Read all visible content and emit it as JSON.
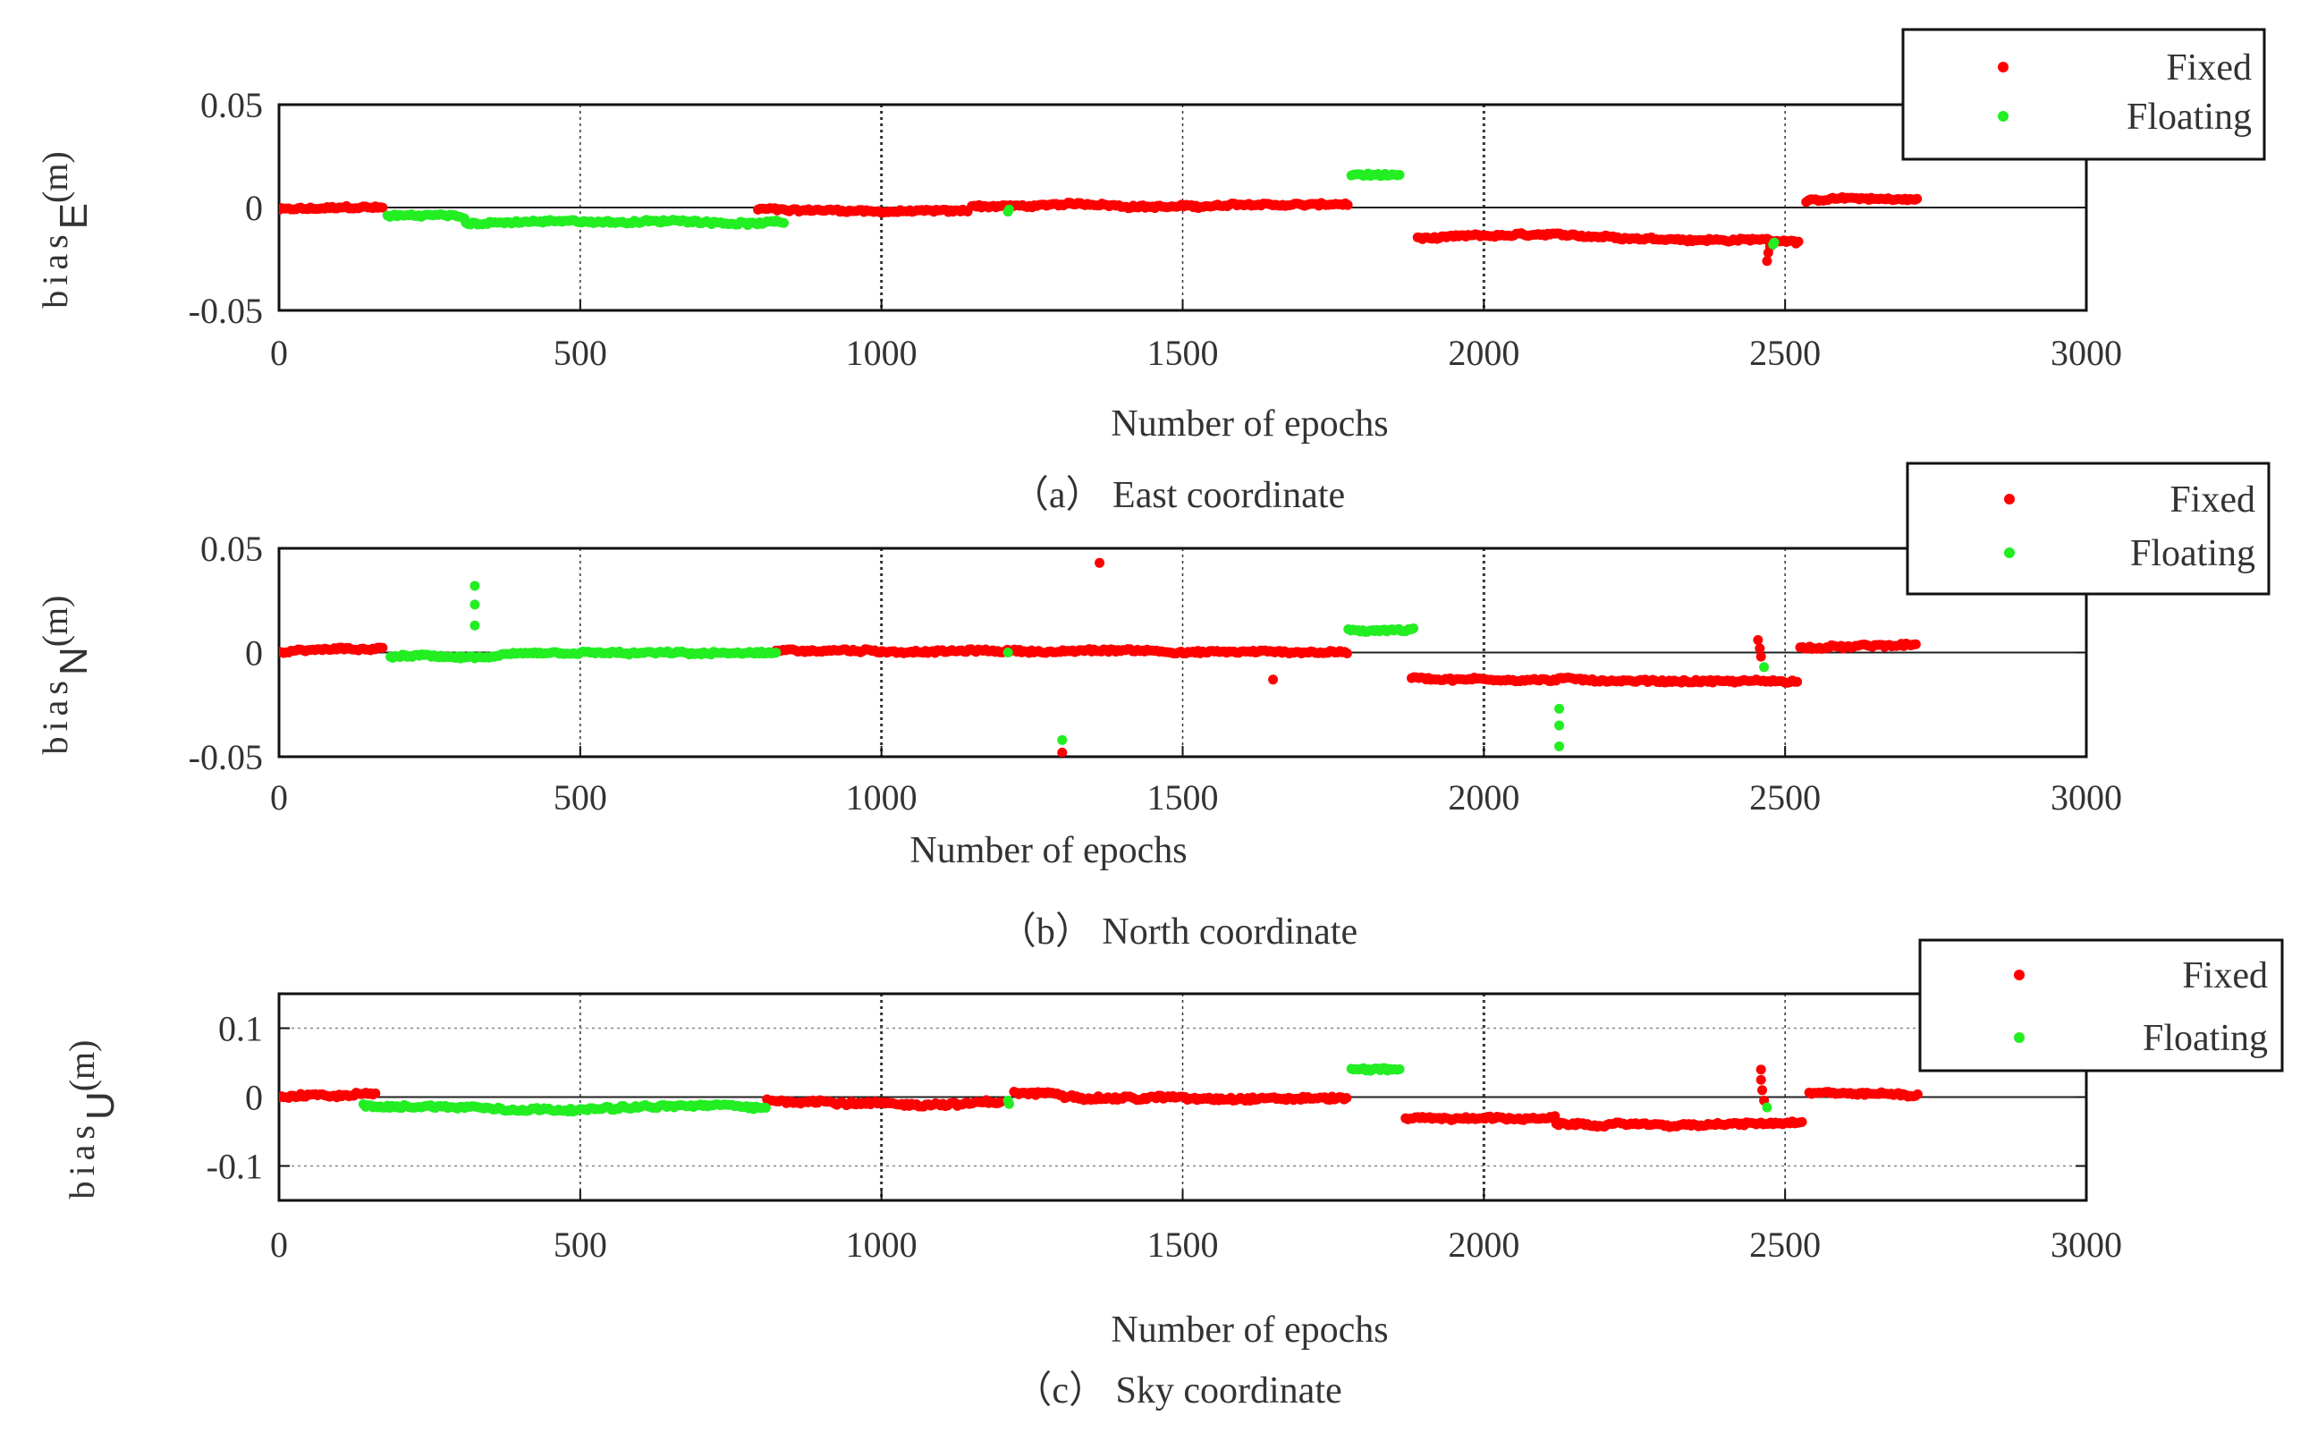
{
  "chart_data": [
    {
      "type": "scatter",
      "panel": "a",
      "caption": "（a） East coordinate",
      "xlabel": "Number of epochs",
      "ylabel_main": "bias",
      "ylabel_sub": "E",
      "ylabel_unit": "(m)",
      "xlim": [
        0,
        3000
      ],
      "ylim": [
        -0.05,
        0.05
      ],
      "xticks": [
        "0",
        "500",
        "1000",
        "1500",
        "2000",
        "2500",
        "3000"
      ],
      "yticks": [
        "0.05",
        "0",
        "-0.05"
      ],
      "ytick_values": [
        0.05,
        0,
        -0.05
      ],
      "legend": {
        "position": "top-right",
        "entries": [
          "Fixed",
          "Floating"
        ]
      },
      "series": [
        {
          "name": "Fixed",
          "color": "#ff0000",
          "segments": [
            {
              "from": 0,
              "to": 175,
              "level": -0.001,
              "spread": 0.002
            },
            {
              "from": 795,
              "to": 1145,
              "level": -0.001,
              "spread": 0.002
            },
            {
              "from": 1150,
              "to": 1775,
              "level": 0.001,
              "spread": 0.002
            },
            {
              "from": 1890,
              "to": 2525,
              "level": -0.015,
              "spread": 0.002
            },
            {
              "from": 2535,
              "to": 2720,
              "level": 0.003,
              "spread": 0.002
            }
          ],
          "extra": [
            [
              2470,
              -0.026
            ],
            [
              2472,
              -0.022
            ],
            [
              2475,
              -0.019
            ]
          ]
        },
        {
          "name": "Floating",
          "color": "#22ee22",
          "segments": [
            {
              "from": 180,
              "to": 310,
              "level": -0.004,
              "spread": 0.002
            },
            {
              "from": 310,
              "to": 840,
              "level": -0.008,
              "spread": 0.002
            },
            {
              "from": 1780,
              "to": 1860,
              "level": 0.016,
              "spread": 0.002
            }
          ],
          "extra": [
            [
              1210,
              -0.002
            ],
            [
              1212,
              -0.001
            ],
            [
              2480,
              -0.018
            ],
            [
              2482,
              -0.017
            ]
          ]
        }
      ]
    },
    {
      "type": "scatter",
      "panel": "b",
      "caption": "（b） North coordinate",
      "xlabel": "Number of epochs",
      "ylabel_main": "bias",
      "ylabel_sub": "N",
      "ylabel_unit": "(m)",
      "xlim": [
        0,
        3000
      ],
      "ylim": [
        -0.05,
        0.05
      ],
      "xticks": [
        "0",
        "500",
        "1000",
        "1500",
        "2000",
        "2500",
        "3000"
      ],
      "yticks": [
        "0.05",
        "0",
        "-0.05"
      ],
      "ytick_values": [
        0.05,
        0,
        -0.05
      ],
      "legend": {
        "position": "top-right",
        "entries": [
          "Fixed",
          "Floating"
        ]
      },
      "series": [
        {
          "name": "Fixed",
          "color": "#ff0000",
          "segments": [
            {
              "from": 0,
              "to": 175,
              "level": 0.0,
              "spread": 0.002
            },
            {
              "from": 825,
              "to": 1775,
              "level": 0.001,
              "spread": 0.002
            },
            {
              "from": 1880,
              "to": 2520,
              "level": -0.012,
              "spread": 0.002
            },
            {
              "from": 2525,
              "to": 2720,
              "level": 0.002,
              "spread": 0.002
            }
          ],
          "extra": [
            [
              1300,
              -0.048
            ],
            [
              1362,
              0.043
            ],
            [
              1650,
              -0.013
            ],
            [
              2455,
              0.006
            ],
            [
              2458,
              0.002
            ],
            [
              2460,
              -0.002
            ]
          ]
        },
        {
          "name": "Floating",
          "color": "#22ee22",
          "segments": [
            {
              "from": 185,
              "to": 825,
              "level": -0.002,
              "spread": 0.002
            },
            {
              "from": 1775,
              "to": 1885,
              "level": 0.011,
              "spread": 0.002
            }
          ],
          "extra": [
            [
              325,
              0.032
            ],
            [
              325,
              0.023
            ],
            [
              325,
              0.013
            ],
            [
              1300,
              -0.042
            ],
            [
              1210,
              0.0
            ],
            [
              2125,
              -0.027
            ],
            [
              2125,
              -0.035
            ],
            [
              2125,
              -0.045
            ],
            [
              2465,
              -0.007
            ]
          ]
        }
      ]
    },
    {
      "type": "scatter",
      "panel": "c",
      "caption": "（c） Sky coordinate",
      "xlabel": "Number of epochs",
      "ylabel_main": "bias",
      "ylabel_sub": "U",
      "ylabel_unit": "(m)",
      "xlim": [
        0,
        3000
      ],
      "ylim": [
        -0.15,
        0.15
      ],
      "xticks": [
        "0",
        "500",
        "1000",
        "1500",
        "2000",
        "2500",
        "3000"
      ],
      "yticks": [
        "0.1",
        "0",
        "-0.1"
      ],
      "ytick_values": [
        0.1,
        0,
        -0.1
      ],
      "legend": {
        "position": "top-right",
        "entries": [
          "Fixed",
          "Floating"
        ]
      },
      "series": [
        {
          "name": "Fixed",
          "color": "#ff0000",
          "segments": [
            {
              "from": 0,
              "to": 160,
              "level": 0.0,
              "spread": 0.008
            },
            {
              "from": 810,
              "to": 1200,
              "level": -0.005,
              "spread": 0.008
            },
            {
              "from": 1220,
              "to": 1775,
              "level": 0.005,
              "spread": 0.008
            },
            {
              "from": 1870,
              "to": 2120,
              "level": -0.03,
              "spread": 0.006
            },
            {
              "from": 2120,
              "to": 2530,
              "level": -0.04,
              "spread": 0.006
            },
            {
              "from": 2540,
              "to": 2720,
              "level": 0.005,
              "spread": 0.006
            }
          ],
          "extra": [
            [
              2460,
              0.04
            ],
            [
              2460,
              0.025
            ],
            [
              2462,
              0.01
            ],
            [
              2465,
              -0.005
            ]
          ]
        },
        {
          "name": "Floating",
          "color": "#22ee22",
          "segments": [
            {
              "from": 140,
              "to": 810,
              "level": -0.012,
              "spread": 0.007
            },
            {
              "from": 1780,
              "to": 1860,
              "level": 0.04,
              "spread": 0.006
            }
          ],
          "extra": [
            [
              1210,
              -0.005
            ],
            [
              1212,
              -0.01
            ],
            [
              2470,
              -0.015
            ]
          ]
        }
      ]
    }
  ]
}
